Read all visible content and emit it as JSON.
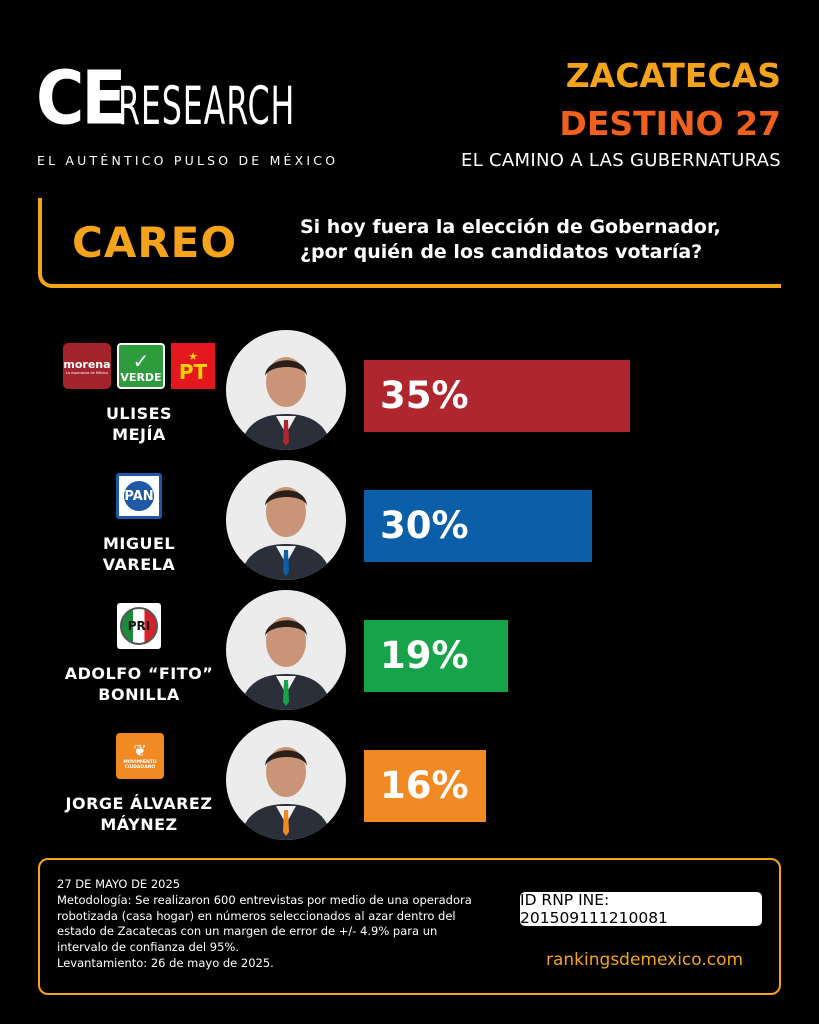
{
  "brand": {
    "logo_ce": "CE",
    "logo_research": "RESEARCH",
    "tagline": "EL AUTÉNTICO PULSO DE MÉXICO"
  },
  "header": {
    "line1": "ZACATECAS",
    "line2": "DESTINO 27",
    "line3": "EL CAMINO A LAS GUBERNATURAS"
  },
  "section": {
    "label": "CAREO",
    "question_l1": "Si hoy fuera la elección de Gobernador,",
    "question_l2": "¿por quién de los candidatos votaría?"
  },
  "parties": {
    "morena": "morena",
    "morena_sub": "La esperanza de México",
    "verde": "VERDE",
    "pt": "PT",
    "pan": "PAN",
    "pri": "PRI",
    "mc": "MOVIMIENTO CIUDADANO"
  },
  "chart_data": {
    "type": "bar",
    "orientation": "horizontal",
    "categories": [
      "ULISES MEJÍA",
      "MIGUEL VARELA",
      "ADOLFO “FITO” BONILLA",
      "JORGE ÁLVAREZ MÁYNEZ"
    ],
    "values": [
      35,
      30,
      19,
      16
    ],
    "labels": [
      "35%",
      "30%",
      "19%",
      "16%"
    ],
    "name_lines": [
      [
        "ULISES",
        "MEJÍA"
      ],
      [
        "MIGUEL",
        "VARELA"
      ],
      [
        "ADOLFO “FITO”",
        "BONILLA"
      ],
      [
        "JORGE ÁLVAREZ",
        "MÁYNEZ"
      ]
    ],
    "colors": [
      "#b0262f",
      "#0b5ea8",
      "#17a34a",
      "#f28a24"
    ],
    "parties": [
      [
        "morena",
        "verde",
        "pt"
      ],
      [
        "pan"
      ],
      [
        "pri"
      ],
      [
        "mc"
      ]
    ],
    "unit": "%"
  },
  "footer": {
    "date": "27 DE MAYO DE 2025",
    "methodology": "Metodología: Se realizaron 600 entrevistas por medio de una operadora robotizada (casa hogar) en números seleccionados al azar dentro del estado de Zacatecas con un margen de error de +/- 4.9% para un intervalo de confianza del 95%.",
    "fieldwork": "Levantamiento: 26 de mayo de 2025.",
    "rnp": "ID RNP INE: 201509111210081",
    "website": "rankingsdemexico.com"
  }
}
